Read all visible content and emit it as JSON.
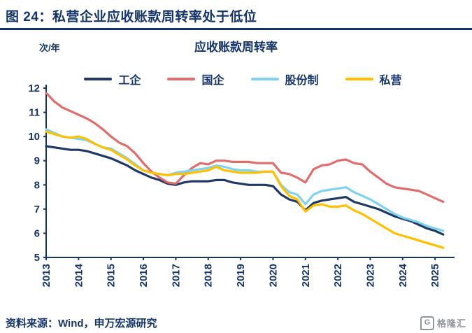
{
  "figure": {
    "title": "图 24：私营企业应收账款周转率处于低位",
    "source": "资料来源：Wind，申万宏源研究",
    "logo_text": "格隆汇",
    "logo_mark": "G"
  },
  "theme": {
    "navy": "#14356B",
    "logo_gray": "#8F959C",
    "background": "#FFFFFF"
  },
  "chart_data": {
    "type": "line",
    "title": "应收账款周转率",
    "unit_label": "次/年",
    "xlabel": "",
    "ylabel": "",
    "ylim": [
      5,
      12
    ],
    "xlim": [
      2013,
      2025.6
    ],
    "yticks": [
      5,
      6,
      7,
      8,
      9,
      10,
      11,
      12
    ],
    "xticks": [
      2013,
      2014,
      2015,
      2016,
      2017,
      2018,
      2019,
      2020,
      2021,
      2022,
      2023,
      2024,
      2025
    ],
    "grid": false,
    "legend_position": "top",
    "x": [
      2013,
      2013.25,
      2013.5,
      2013.75,
      2014,
      2014.25,
      2014.5,
      2014.75,
      2015,
      2015.25,
      2015.5,
      2015.75,
      2016,
      2016.25,
      2016.5,
      2016.75,
      2017,
      2017.25,
      2017.5,
      2017.75,
      2018,
      2018.25,
      2018.5,
      2018.75,
      2019,
      2019.25,
      2019.5,
      2019.75,
      2020,
      2020.25,
      2020.5,
      2020.75,
      2021,
      2021.25,
      2021.5,
      2021.75,
      2022,
      2022.25,
      2022.5,
      2022.75,
      2023,
      2023.25,
      2023.5,
      2023.75,
      2024,
      2024.25,
      2024.5,
      2024.75,
      2025,
      2025.25
    ],
    "series": [
      {
        "name": "工企",
        "color": "#1F3864",
        "values": [
          9.6,
          9.55,
          9.5,
          9.45,
          9.45,
          9.4,
          9.3,
          9.2,
          9.1,
          8.95,
          8.8,
          8.6,
          8.45,
          8.3,
          8.2,
          8.05,
          8.0,
          8.1,
          8.15,
          8.15,
          8.15,
          8.2,
          8.2,
          8.1,
          8.05,
          8.0,
          8.0,
          8.0,
          7.95,
          7.6,
          7.4,
          7.3,
          6.95,
          7.25,
          7.35,
          7.4,
          7.45,
          7.5,
          7.3,
          7.2,
          7.1,
          7.0,
          6.85,
          6.7,
          6.6,
          6.5,
          6.35,
          6.2,
          6.1,
          5.95
        ]
      },
      {
        "name": "国企",
        "color": "#E06C6C",
        "values": [
          11.8,
          11.45,
          11.2,
          11.05,
          10.9,
          10.75,
          10.55,
          10.3,
          10.0,
          9.75,
          9.6,
          9.3,
          8.9,
          8.55,
          8.3,
          8.1,
          8.05,
          8.4,
          8.7,
          8.9,
          8.85,
          9.0,
          9.0,
          8.95,
          8.95,
          8.95,
          8.9,
          8.9,
          8.9,
          8.5,
          8.45,
          8.3,
          8.1,
          8.65,
          8.8,
          8.85,
          9.0,
          9.05,
          8.9,
          8.85,
          8.55,
          8.3,
          8.05,
          7.9,
          7.85,
          7.8,
          7.75,
          7.6,
          7.45,
          7.3
        ]
      },
      {
        "name": "股份制",
        "color": "#7DD3F0",
        "values": [
          10.3,
          10.15,
          10.0,
          9.95,
          9.9,
          9.85,
          9.7,
          9.55,
          9.5,
          9.3,
          9.1,
          8.85,
          8.6,
          8.5,
          8.45,
          8.4,
          8.5,
          8.55,
          8.6,
          8.65,
          8.7,
          8.8,
          8.75,
          8.65,
          8.6,
          8.6,
          8.55,
          8.55,
          8.55,
          8.0,
          7.7,
          7.6,
          7.2,
          7.6,
          7.75,
          7.8,
          7.85,
          7.9,
          7.7,
          7.55,
          7.4,
          7.2,
          7.0,
          6.8,
          6.65,
          6.55,
          6.45,
          6.3,
          6.2,
          6.1
        ]
      },
      {
        "name": "私营",
        "color": "#FFC000",
        "values": [
          10.2,
          10.1,
          10.0,
          9.95,
          10.0,
          9.9,
          9.7,
          9.55,
          9.45,
          9.25,
          9.05,
          8.8,
          8.6,
          8.5,
          8.45,
          8.4,
          8.45,
          8.45,
          8.5,
          8.55,
          8.6,
          8.75,
          8.6,
          8.55,
          8.5,
          8.5,
          8.5,
          8.55,
          8.55,
          7.95,
          7.55,
          7.4,
          6.9,
          7.15,
          7.2,
          7.1,
          7.1,
          7.15,
          6.95,
          6.8,
          6.6,
          6.4,
          6.2,
          6.0,
          5.9,
          5.8,
          5.7,
          5.6,
          5.5,
          5.4
        ]
      }
    ]
  }
}
